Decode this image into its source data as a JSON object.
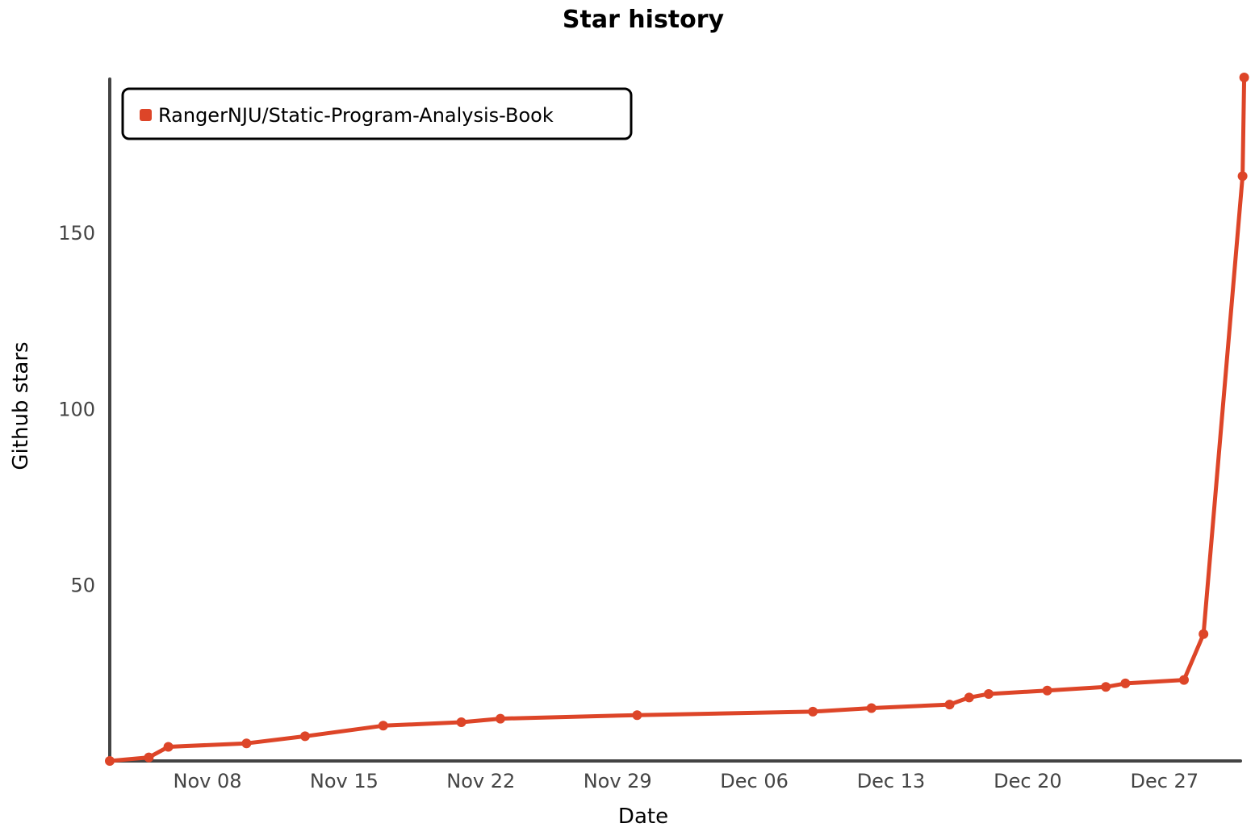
{
  "chart_data": {
    "type": "line",
    "title": "Star history",
    "xlabel": "Date",
    "ylabel": "Github stars",
    "x_ticks": [
      "Nov 08",
      "Nov 15",
      "Nov 22",
      "Nov 29",
      "Dec 06",
      "Dec 13",
      "Dec 20",
      "Dec 27"
    ],
    "y_ticks": [
      50,
      100,
      150
    ],
    "legend_position": "top-left",
    "grid": false,
    "series": [
      {
        "name": "RangerNJU/Static-Program-Analysis-Book",
        "color": "#dd4528",
        "points": [
          {
            "x": "2020-11-03",
            "y": 0
          },
          {
            "x": "2020-11-05",
            "y": 1
          },
          {
            "x": "2020-11-06",
            "y": 4
          },
          {
            "x": "2020-11-10",
            "y": 5
          },
          {
            "x": "2020-11-13",
            "y": 7
          },
          {
            "x": "2020-11-17",
            "y": 10
          },
          {
            "x": "2020-11-21",
            "y": 11
          },
          {
            "x": "2020-11-23",
            "y": 12
          },
          {
            "x": "2020-11-30",
            "y": 13
          },
          {
            "x": "2020-12-09",
            "y": 14
          },
          {
            "x": "2020-12-12",
            "y": 15
          },
          {
            "x": "2020-12-16",
            "y": 16
          },
          {
            "x": "2020-12-17",
            "y": 18
          },
          {
            "x": "2020-12-18",
            "y": 19
          },
          {
            "x": "2020-12-21",
            "y": 20
          },
          {
            "x": "2020-12-24",
            "y": 21
          },
          {
            "x": "2020-12-25",
            "y": 22
          },
          {
            "x": "2020-12-28",
            "y": 23
          },
          {
            "x": "2020-12-29",
            "y": 36
          },
          {
            "x": "2020-12-31",
            "y": 166
          },
          {
            "x": "2020-12-31T02:00",
            "y": 194
          }
        ]
      }
    ]
  }
}
